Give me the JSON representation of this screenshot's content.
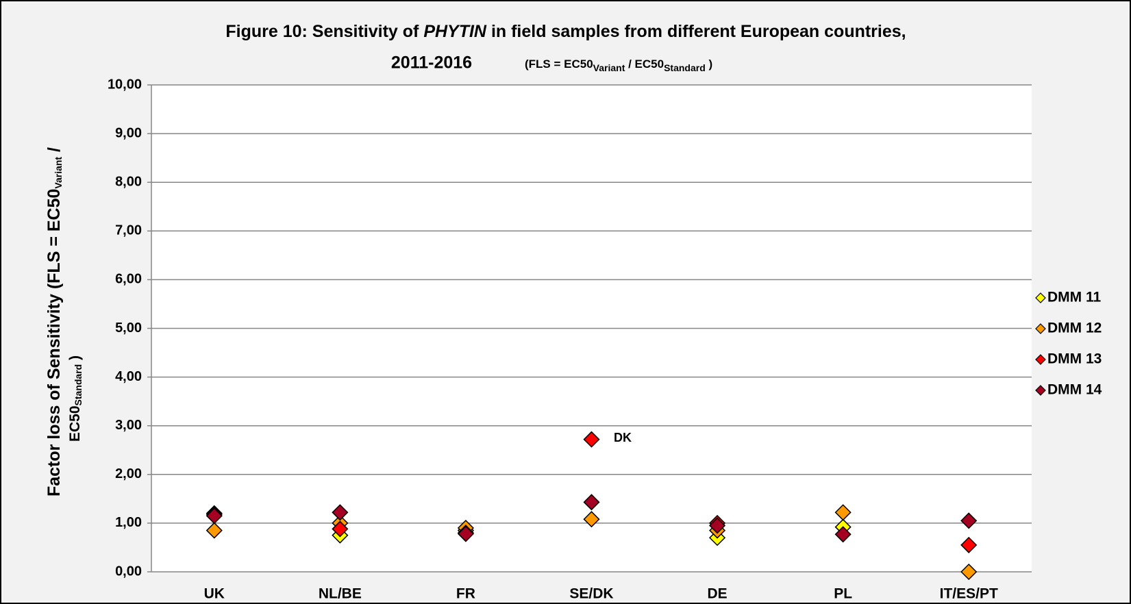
{
  "chart_data": {
    "type": "scatter",
    "title": {
      "prefix": "Figure 10: Sensitivity of ",
      "italic": "PHYTIN",
      "suffix": " in field samples from different European countries,",
      "years": "2011-2016",
      "formula": [
        "(FLS = EC50",
        "Variant",
        " / EC50",
        "Standard",
        " )"
      ]
    },
    "y_label": [
      "Factor loss of Sensitivity (FLS = EC50",
      "Variant",
      " /",
      "EC50",
      "Standard",
      " )"
    ],
    "categories": [
      "UK",
      "NL/BE",
      "FR",
      "SE/DK",
      "DE",
      "PL",
      "IT/ES/PT"
    ],
    "series": [
      {
        "name": "DMM 11",
        "color": "#ffff00",
        "values": [
          1.2,
          0.75,
          0.85,
          null,
          0.7,
          0.92,
          null
        ]
      },
      {
        "name": "DMM 12",
        "color": "#ff9900",
        "values": [
          0.85,
          1.0,
          0.9,
          1.08,
          0.85,
          1.22,
          0.0
        ]
      },
      {
        "name": "DMM 13",
        "color": "#ff0000",
        "values": [
          1.18,
          0.88,
          0.8,
          2.72,
          1.0,
          null,
          0.55
        ]
      },
      {
        "name": "DMM 14",
        "color": "#a50021",
        "values": [
          1.15,
          1.22,
          0.78,
          1.43,
          0.95,
          0.77,
          1.05
        ]
      }
    ],
    "annotation": "DK",
    "ylim": [
      0,
      10
    ],
    "yticks": [
      {
        "value": 0,
        "label": "0,00"
      },
      {
        "value": 1,
        "label": "1,00"
      },
      {
        "value": 2,
        "label": "2,00"
      },
      {
        "value": 3,
        "label": "3,00"
      },
      {
        "value": 4,
        "label": "4,00"
      },
      {
        "value": 5,
        "label": "5,00"
      },
      {
        "value": 6,
        "label": "6,00"
      },
      {
        "value": 7,
        "label": "7,00"
      },
      {
        "value": 8,
        "label": "8,00"
      },
      {
        "value": 9,
        "label": "9,00"
      },
      {
        "value": 10,
        "label": "10,00"
      }
    ],
    "grid": true,
    "legend": "right"
  }
}
